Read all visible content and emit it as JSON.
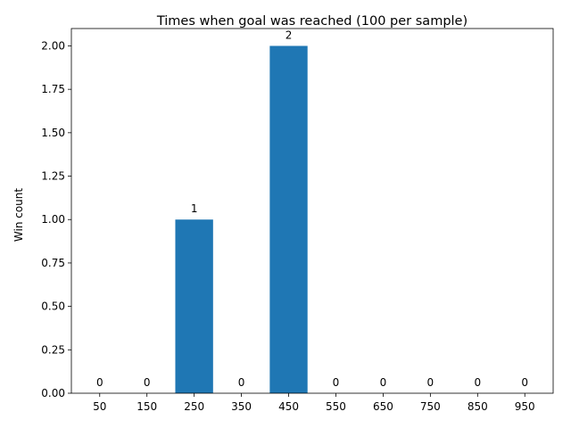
{
  "chart_data": {
    "type": "bar",
    "title": "Times when goal was reached (100 per sample)",
    "xlabel": "",
    "ylabel": "Win count",
    "categories": [
      "50",
      "150",
      "250",
      "350",
      "450",
      "550",
      "650",
      "750",
      "850",
      "950"
    ],
    "values": [
      0,
      0,
      1,
      0,
      2,
      0,
      0,
      0,
      0,
      0
    ],
    "value_labels": [
      "0",
      "0",
      "1",
      "0",
      "2",
      "0",
      "0",
      "0",
      "0",
      "0"
    ],
    "ylim": [
      0,
      2.1
    ],
    "yticks": [
      0,
      0.25,
      0.5,
      0.75,
      1.0,
      1.25,
      1.5,
      1.75,
      2.0
    ],
    "ytick_labels": [
      "0.00",
      "0.25",
      "0.50",
      "0.75",
      "1.00",
      "1.25",
      "1.50",
      "1.75",
      "2.00"
    ],
    "bar_color": "#1f77b4",
    "grid": false
  }
}
